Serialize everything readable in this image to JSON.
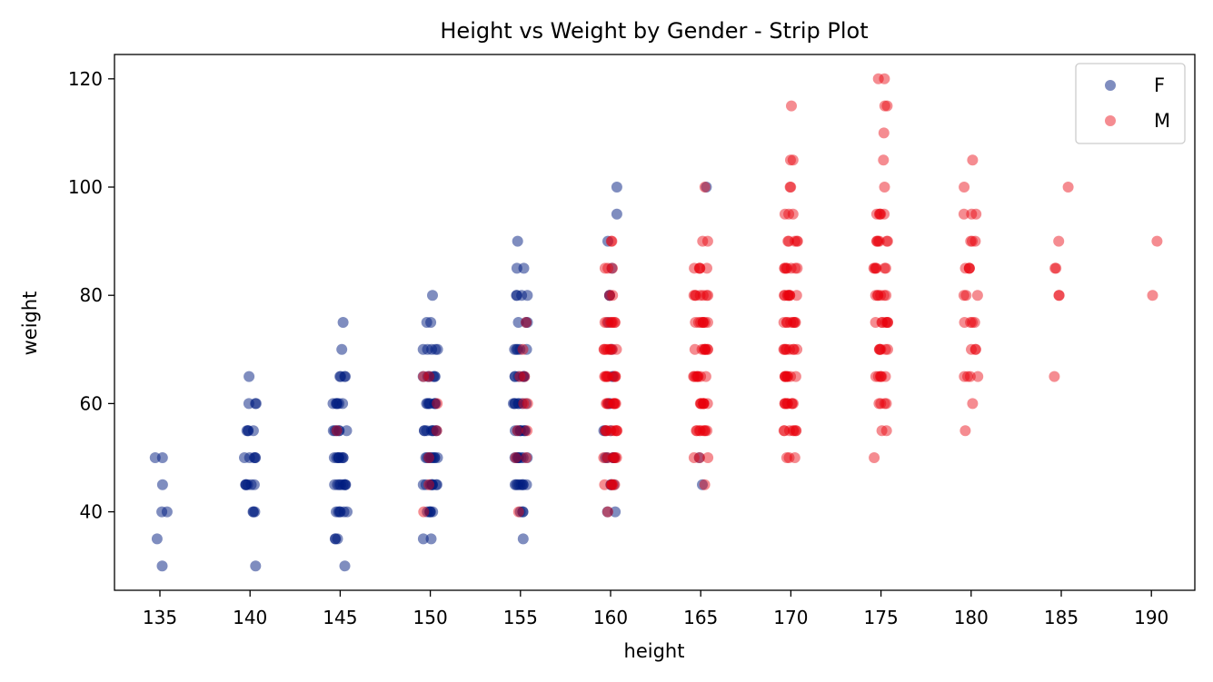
{
  "chart_data": {
    "type": "scatter",
    "title": "Height vs Weight by Gender - Strip Plot",
    "xlabel": "height",
    "ylabel": "weight",
    "x_ticks": [
      "135",
      "140",
      "145",
      "150",
      "155",
      "160",
      "165",
      "170",
      "175",
      "180",
      "185",
      "190"
    ],
    "y_ticks": [
      40,
      60,
      80,
      100,
      120
    ],
    "ylim": [
      25.5,
      124.5
    ],
    "legend_position": "top-right",
    "series": [
      {
        "name": "F",
        "color": "#001c7f",
        "opacity": 0.5,
        "points": [
          [
            135,
            [
              30,
              35,
              40,
              40,
              45,
              50,
              50
            ]
          ],
          [
            140,
            [
              30,
              40,
              40,
              40,
              45,
              45,
              45,
              45,
              45,
              45,
              50,
              50,
              50,
              50,
              50,
              55,
              55,
              55,
              55,
              60,
              60,
              60,
              65
            ]
          ],
          [
            145,
            [
              30,
              35,
              35,
              35,
              40,
              40,
              40,
              40,
              40,
              40,
              45,
              45,
              45,
              45,
              45,
              45,
              45,
              45,
              50,
              50,
              50,
              50,
              50,
              50,
              50,
              50,
              55,
              55,
              55,
              55,
              55,
              55,
              60,
              60,
              60,
              60,
              60,
              60,
              65,
              65,
              65,
              65,
              70,
              75
            ]
          ],
          [
            150,
            [
              35,
              35,
              40,
              40,
              40,
              40,
              40,
              45,
              45,
              45,
              45,
              45,
              45,
              45,
              45,
              50,
              50,
              50,
              50,
              50,
              50,
              50,
              50,
              50,
              55,
              55,
              55,
              55,
              55,
              55,
              55,
              55,
              60,
              60,
              60,
              60,
              60,
              60,
              60,
              65,
              65,
              65,
              65,
              65,
              65,
              70,
              70,
              70,
              70,
              70,
              75,
              75,
              80
            ]
          ],
          [
            155,
            [
              35,
              40,
              40,
              40,
              45,
              45,
              45,
              45,
              45,
              45,
              45,
              45,
              50,
              50,
              50,
              50,
              50,
              50,
              50,
              50,
              55,
              55,
              55,
              55,
              55,
              55,
              55,
              55,
              60,
              60,
              60,
              60,
              60,
              60,
              60,
              65,
              65,
              65,
              65,
              65,
              65,
              70,
              70,
              70,
              70,
              70,
              75,
              75,
              75,
              80,
              80,
              80,
              80,
              85,
              85,
              90
            ]
          ],
          [
            160,
            [
              40,
              40,
              45,
              45,
              45,
              50,
              50,
              50,
              50,
              50,
              55,
              55,
              55,
              60,
              60,
              65,
              65,
              70,
              75,
              80,
              80,
              85,
              90,
              95,
              100
            ]
          ],
          [
            165,
            [
              45,
              50,
              100
            ]
          ]
        ]
      },
      {
        "name": "M",
        "color": "#e8000b",
        "opacity": 0.45,
        "points": [
          [
            145,
            [
              55
            ]
          ],
          [
            150,
            [
              40,
              45,
              50,
              55,
              60,
              65,
              65
            ]
          ],
          [
            155,
            [
              40,
              50,
              50,
              55,
              55,
              60,
              60,
              65,
              65,
              70,
              75
            ]
          ],
          [
            160,
            [
              40,
              45,
              45,
              45,
              45,
              45,
              50,
              50,
              50,
              50,
              50,
              50,
              55,
              55,
              55,
              55,
              55,
              55,
              55,
              55,
              60,
              60,
              60,
              60,
              60,
              60,
              60,
              60,
              65,
              65,
              65,
              65,
              65,
              65,
              65,
              65,
              70,
              70,
              70,
              70,
              70,
              70,
              70,
              70,
              75,
              75,
              75,
              75,
              75,
              75,
              75,
              80,
              80,
              85,
              85,
              85,
              90,
              90
            ]
          ],
          [
            165,
            [
              45,
              50,
              50,
              50,
              55,
              55,
              55,
              55,
              55,
              55,
              55,
              55,
              60,
              60,
              60,
              60,
              60,
              60,
              60,
              60,
              65,
              65,
              65,
              65,
              65,
              65,
              65,
              65,
              70,
              70,
              70,
              70,
              70,
              70,
              70,
              70,
              75,
              75,
              75,
              75,
              75,
              75,
              75,
              75,
              80,
              80,
              80,
              80,
              80,
              80,
              80,
              85,
              85,
              85,
              85,
              85,
              90,
              90,
              100
            ]
          ],
          [
            170,
            [
              50,
              50,
              50,
              55,
              55,
              55,
              55,
              55,
              55,
              55,
              60,
              60,
              60,
              60,
              60,
              60,
              60,
              60,
              65,
              65,
              65,
              65,
              65,
              65,
              65,
              65,
              70,
              70,
              70,
              70,
              70,
              70,
              70,
              70,
              75,
              75,
              75,
              75,
              75,
              75,
              75,
              75,
              80,
              80,
              80,
              80,
              80,
              80,
              80,
              80,
              85,
              85,
              85,
              85,
              85,
              85,
              85,
              90,
              90,
              90,
              90,
              90,
              95,
              95,
              95,
              100,
              100,
              105,
              105,
              115
            ]
          ],
          [
            175,
            [
              50,
              55,
              55,
              60,
              60,
              60,
              60,
              65,
              65,
              65,
              65,
              65,
              65,
              70,
              70,
              70,
              70,
              70,
              70,
              75,
              75,
              75,
              75,
              75,
              75,
              75,
              80,
              80,
              80,
              80,
              80,
              80,
              85,
              85,
              85,
              85,
              85,
              85,
              90,
              90,
              90,
              90,
              90,
              90,
              95,
              95,
              95,
              95,
              95,
              100,
              105,
              110,
              115,
              115,
              120,
              120
            ]
          ],
          [
            180,
            [
              55,
              60,
              65,
              65,
              65,
              65,
              70,
              70,
              70,
              75,
              75,
              75,
              75,
              80,
              80,
              80,
              85,
              85,
              85,
              85,
              90,
              90,
              90,
              95,
              95,
              95,
              100,
              105
            ]
          ],
          [
            185,
            [
              65,
              80,
              80,
              85,
              85,
              90,
              100
            ]
          ],
          [
            190,
            [
              80,
              90
            ]
          ]
        ]
      }
    ]
  }
}
